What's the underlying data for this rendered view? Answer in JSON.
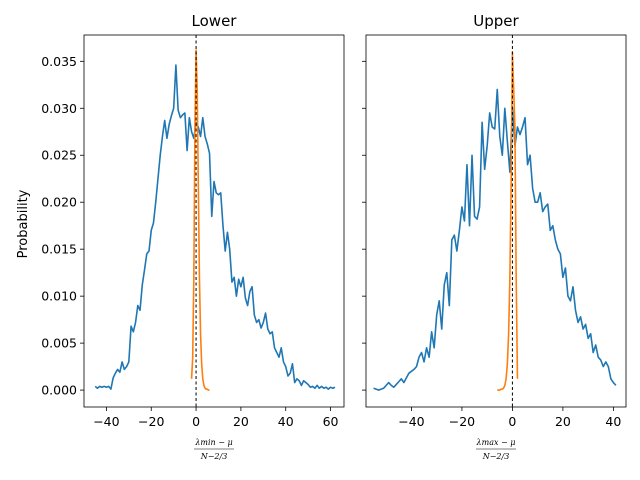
{
  "colors": {
    "emp": "#1f77b4",
    "tw": "#ff7f0e",
    "ref": "#000000"
  },
  "ylabel": "Probability",
  "yticks": [
    "0.000",
    "0.005",
    "0.010",
    "0.015",
    "0.020",
    "0.025",
    "0.030",
    "0.035"
  ],
  "chart_data": [
    {
      "type": "line",
      "title": "Lower",
      "xlabel_num": "λmin − μ",
      "xlabel_den": "N−2/3",
      "xlim": [
        -50,
        66
      ],
      "ylim": [
        -0.0018,
        0.0378
      ],
      "xticks": [
        -40,
        -20,
        0,
        20,
        40,
        60
      ],
      "xtick_labels": [
        "−40",
        "−20",
        "0",
        "20",
        "40",
        "60"
      ],
      "vline": 0,
      "series": [
        {
          "x": [
            -45,
            -44,
            -43,
            -42,
            -41,
            -40,
            -39,
            -38,
            -37,
            -36,
            -35,
            -34,
            -33,
            -32,
            -31,
            -30,
            -29,
            -28,
            -27,
            -26,
            -25,
            -24,
            -23,
            -22,
            -21,
            -20,
            -19,
            -18,
            -17,
            -16,
            -15,
            -14,
            -13,
            -12,
            -11,
            -10,
            -9,
            -8,
            -7,
            -6,
            -5,
            -4,
            -3,
            -2,
            -1,
            0,
            1,
            2,
            3,
            4,
            5,
            6,
            7,
            8,
            9,
            10,
            11,
            12,
            13,
            14,
            15,
            16,
            17,
            18,
            19,
            20,
            21,
            22,
            23,
            24,
            25,
            26,
            27,
            28,
            29,
            30,
            31,
            32,
            33,
            34,
            35,
            36,
            37,
            38,
            39,
            40,
            41,
            42,
            43,
            44,
            45,
            46,
            47,
            48,
            49,
            50,
            51,
            52,
            53,
            54,
            55,
            56,
            57,
            58,
            59,
            60,
            61,
            62
          ],
          "y": [
            0.0004,
            0.0002,
            0.0004,
            0.0003,
            0.0004,
            0.0003,
            0.0004,
            0.0001,
            0.0013,
            0.0018,
            0.0022,
            0.0019,
            0.003,
            0.0022,
            0.0025,
            0.003,
            0.0068,
            0.0062,
            0.0072,
            0.009,
            0.0085,
            0.0112,
            0.0128,
            0.0145,
            0.0148,
            0.017,
            0.0178,
            0.02,
            0.0225,
            0.025,
            0.027,
            0.0287,
            0.0268,
            0.0283,
            0.0292,
            0.03,
            0.0346,
            0.0298,
            0.029,
            0.0293,
            0.0295,
            0.0255,
            0.029,
            0.0275,
            0.0268,
            0.0285,
            0.028,
            0.027,
            0.029,
            0.027,
            0.0262,
            0.0252,
            0.0185,
            0.0222,
            0.021,
            0.0208,
            0.021,
            0.0175,
            0.0148,
            0.0168,
            0.015,
            0.0115,
            0.012,
            0.01,
            0.0118,
            0.011,
            0.012,
            0.0098,
            0.009,
            0.0105,
            0.011,
            0.008,
            0.0072,
            0.0075,
            0.0066,
            0.0072,
            0.0082,
            0.0065,
            0.006,
            0.0062,
            0.0045,
            0.004,
            0.0035,
            0.0045,
            0.003,
            0.0025,
            0.0015,
            0.0018,
            0.0028,
            0.0008,
            0.0012,
            0.001,
            0.0005,
            0.001,
            0.0008,
            0.0006,
            0.0003,
            0.0004,
            0.0002,
            0.0005,
            0.0002,
            0.0004,
            0.0002,
            0.0003,
            0.0001,
            0.0003,
            0.0002,
            0.0003
          ]
        },
        {
          "x": [
            -2.0,
            -1.5,
            -1.0,
            -0.5,
            0.0,
            0.5,
            1.0,
            1.5,
            2.0,
            2.5,
            3.0,
            3.5,
            4.0,
            4.5,
            5.0,
            5.5,
            6.0
          ],
          "y": [
            0.0012,
            0.0035,
            0.012,
            0.028,
            0.0362,
            0.032,
            0.022,
            0.012,
            0.006,
            0.0028,
            0.0012,
            0.0005,
            0.0002,
            0.0001,
            0.0001,
            0.0,
            0.0
          ]
        }
      ]
    },
    {
      "type": "line",
      "title": "Upper",
      "xlabel_num": "λmax − μ",
      "xlabel_den": "N−2/3",
      "xlim": [
        -58,
        45
      ],
      "ylim": [
        -0.0018,
        0.0378
      ],
      "xticks": [
        -40,
        -20,
        0,
        20,
        40
      ],
      "xtick_labels": [
        "−40",
        "−20",
        "0",
        "20",
        "40"
      ],
      "vline": 0,
      "series": [
        {
          "x": [
            -55,
            -54,
            -53,
            -52,
            -51,
            -50,
            -49,
            -48,
            -47,
            -46,
            -45,
            -44,
            -43,
            -42,
            -41,
            -40,
            -39,
            -38,
            -37,
            -36,
            -35,
            -34,
            -33,
            -32,
            -31,
            -30,
            -29,
            -28,
            -27,
            -26,
            -25,
            -24,
            -23,
            -22,
            -21,
            -20,
            -19,
            -18,
            -17,
            -16,
            -15,
            -14,
            -13,
            -12,
            -11,
            -10,
            -9,
            -8,
            -7,
            -6,
            -5,
            -4,
            -3,
            -2,
            -1,
            0,
            1,
            2,
            3,
            4,
            5,
            6,
            7,
            8,
            9,
            10,
            11,
            12,
            13,
            14,
            15,
            16,
            17,
            18,
            19,
            20,
            21,
            22,
            23,
            24,
            25,
            26,
            27,
            28,
            29,
            30,
            31,
            32,
            33,
            34,
            35,
            36,
            37,
            38,
            39,
            40,
            41
          ],
          "y": [
            0.0002,
            0.0001,
            0.0,
            0.0001,
            0.0002,
            0.0005,
            0.0008,
            0.0005,
            0.0003,
            0.0006,
            0.0009,
            0.0012,
            0.0008,
            0.0013,
            0.0018,
            0.002,
            0.0022,
            0.0025,
            0.0035,
            0.004,
            0.003,
            0.0045,
            0.0035,
            0.0062,
            0.0045,
            0.008,
            0.0095,
            0.0065,
            0.0112,
            0.0125,
            0.009,
            0.016,
            0.0165,
            0.0148,
            0.017,
            0.0195,
            0.018,
            0.024,
            0.0175,
            0.025,
            0.0185,
            0.0182,
            0.0195,
            0.0285,
            0.0235,
            0.026,
            0.0295,
            0.028,
            0.0278,
            0.032,
            0.027,
            0.025,
            0.03,
            0.0265,
            0.0232,
            0.03,
            0.026,
            0.028,
            0.0272,
            0.028,
            0.029,
            0.024,
            0.025,
            0.0215,
            0.02,
            0.02,
            0.021,
            0.019,
            0.0195,
            0.0198,
            0.017,
            0.0175,
            0.016,
            0.015,
            0.0145,
            0.012,
            0.013,
            0.01,
            0.0095,
            0.011,
            0.0085,
            0.0072,
            0.0078,
            0.0065,
            0.007,
            0.0055,
            0.006,
            0.004,
            0.0048,
            0.0035,
            0.0032,
            0.0025,
            0.003,
            0.0025,
            0.0012,
            0.0008,
            0.0005
          ]
        },
        {
          "x": [
            -6.0,
            -5.5,
            -5.0,
            -4.5,
            -4.0,
            -3.5,
            -3.0,
            -2.5,
            -2.0,
            -1.5,
            -1.0,
            -0.5,
            0.0,
            0.5,
            1.0,
            1.5,
            2.0
          ],
          "y": [
            0.0,
            0.0,
            0.0,
            0.0001,
            0.0001,
            0.0002,
            0.0005,
            0.0012,
            0.0028,
            0.006,
            0.012,
            0.022,
            0.036,
            0.032,
            0.028,
            0.012,
            0.0012
          ]
        }
      ]
    }
  ]
}
